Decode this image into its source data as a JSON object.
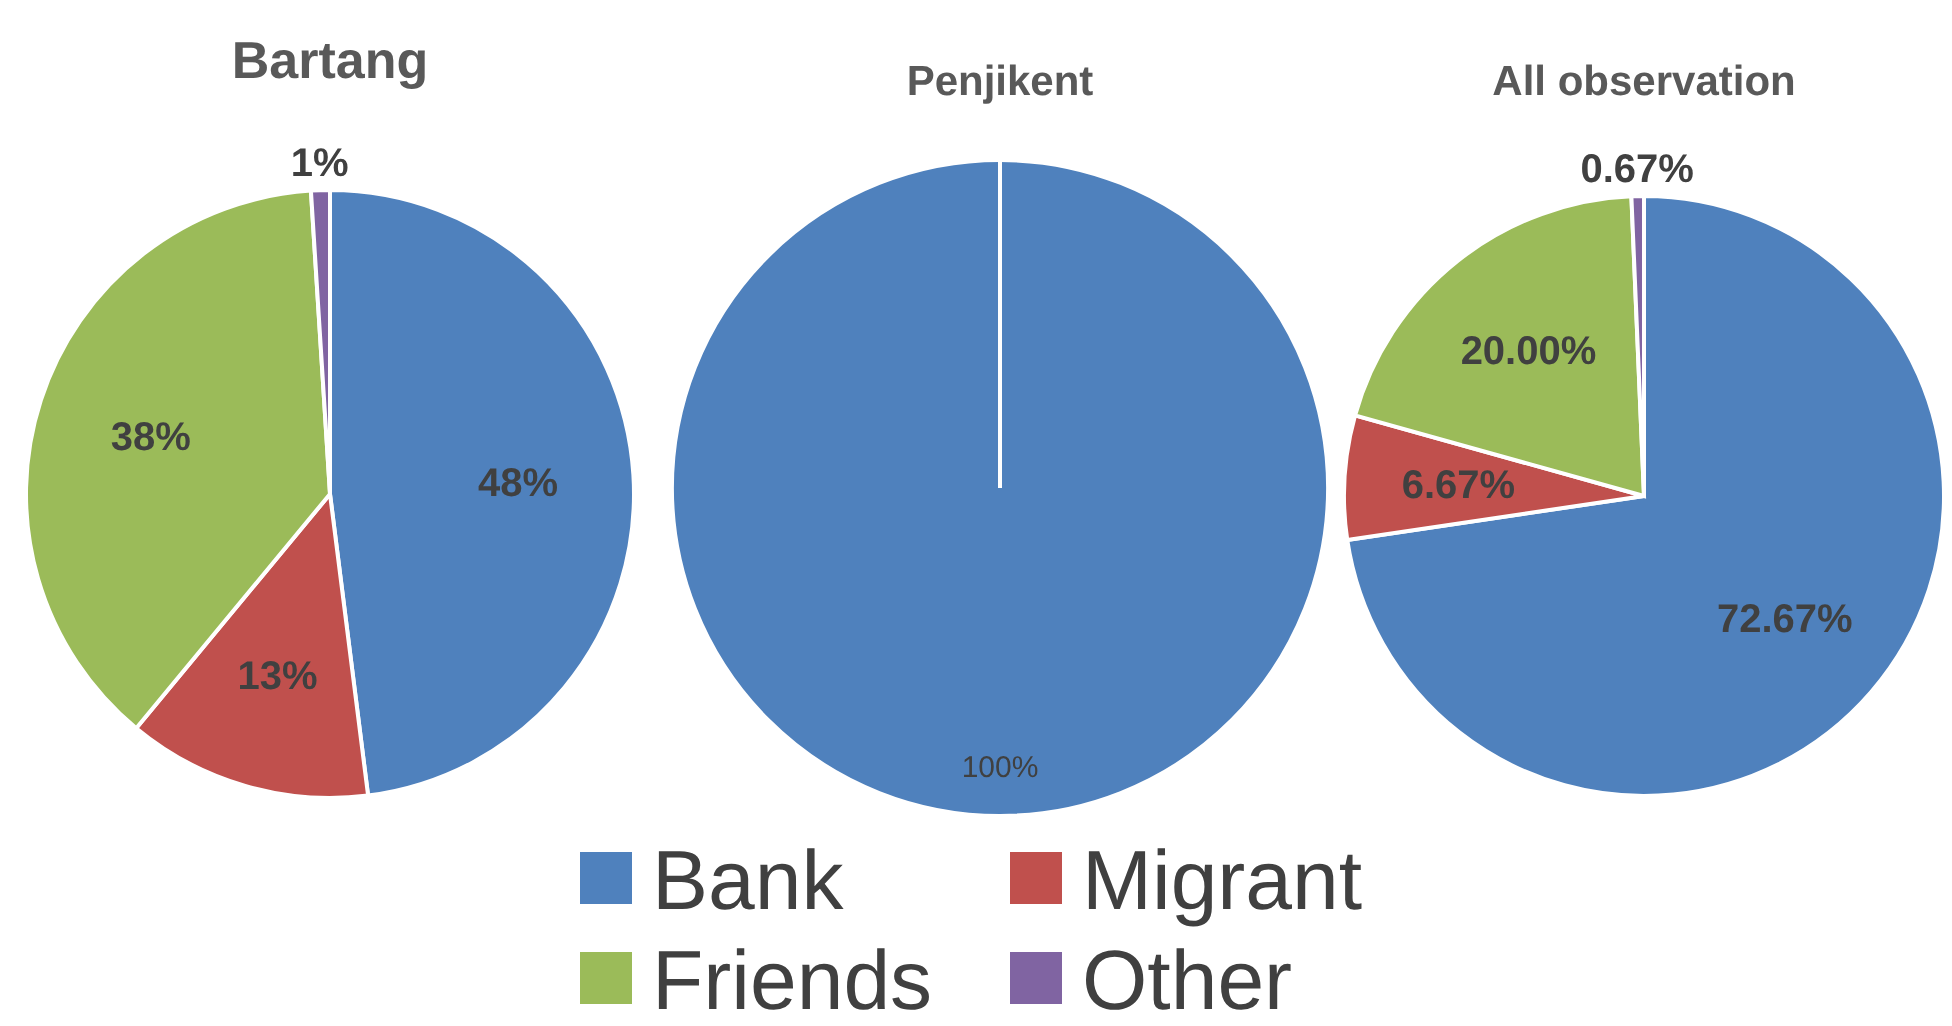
{
  "chart_data": [
    {
      "type": "pie",
      "title": "Bartang",
      "categories": [
        "Bank",
        "Migrant",
        "Friends",
        "Other"
      ],
      "values": [
        48,
        13,
        38,
        1
      ],
      "colors": [
        "#4f81bd",
        "#c0504d",
        "#9bbb59",
        "#8064a2"
      ],
      "value_labels": [
        "48%",
        "13%",
        "38%",
        "1%"
      ],
      "legend": "bottom"
    },
    {
      "type": "pie",
      "title": "Penjikent",
      "values": [
        100,
        0,
        0,
        0
      ],
      "colors": [
        "#4f81bd",
        "#c0504d",
        "#9bbb59",
        "#8064a2"
      ],
      "value_labels": [
        "100%",
        null,
        null,
        null
      ]
    },
    {
      "type": "pie",
      "title": "All observation",
      "values": [
        72.67,
        6.67,
        20.0,
        0.67
      ],
      "colors": [
        "#4f81bd",
        "#c0504d",
        "#9bbb59",
        "#8064a2"
      ],
      "value_labels": [
        "72.67%",
        "6.67%",
        "20.00%",
        "0.67%"
      ]
    }
  ]
}
